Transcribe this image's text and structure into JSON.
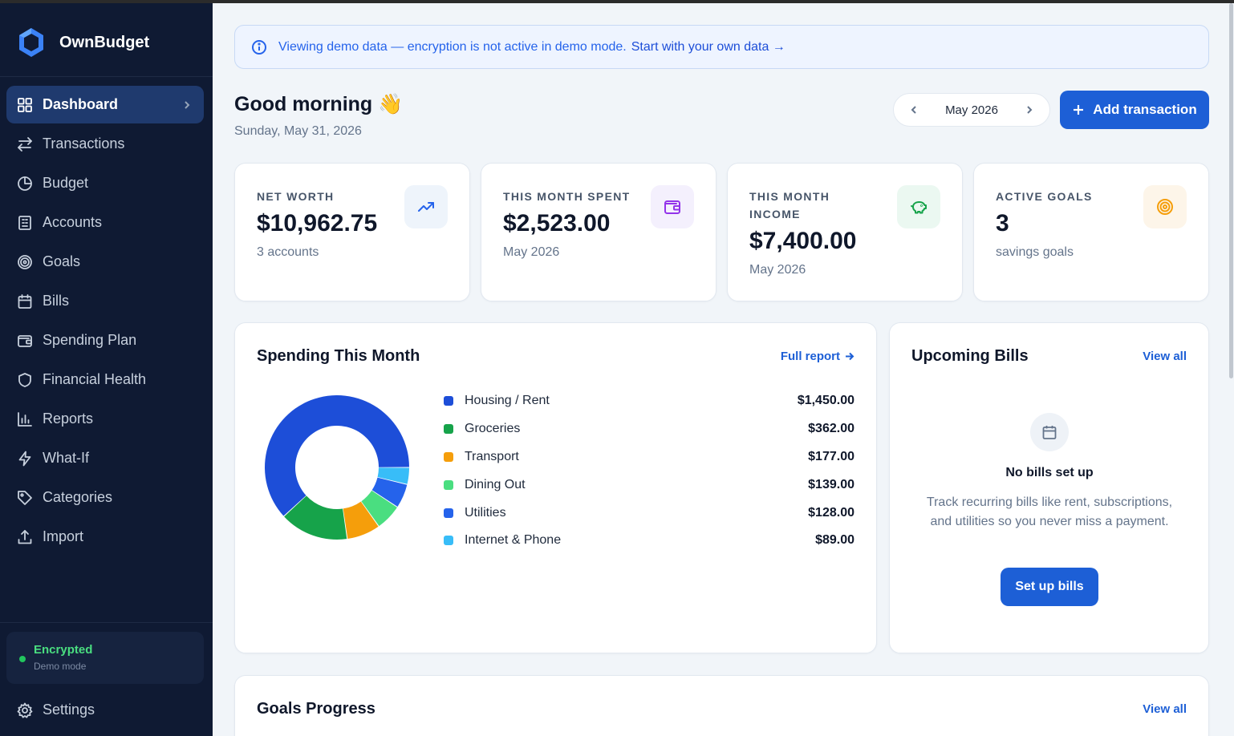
{
  "app": {
    "name": "OwnBudget"
  },
  "sidebar": {
    "items": [
      {
        "label": "Dashboard",
        "icon": "dashboard-icon"
      },
      {
        "label": "Transactions",
        "icon": "transactions-icon"
      },
      {
        "label": "Budget",
        "icon": "budget-icon"
      },
      {
        "label": "Accounts",
        "icon": "accounts-icon"
      },
      {
        "label": "Goals",
        "icon": "goals-icon"
      },
      {
        "label": "Bills",
        "icon": "bills-icon"
      },
      {
        "label": "Spending Plan",
        "icon": "wallet-icon"
      },
      {
        "label": "Financial Health",
        "icon": "shield-icon"
      },
      {
        "label": "Reports",
        "icon": "reports-icon"
      },
      {
        "label": "What-If",
        "icon": "bolt-icon"
      },
      {
        "label": "Categories",
        "icon": "tag-icon"
      },
      {
        "label": "Import",
        "icon": "upload-icon"
      }
    ],
    "status": {
      "title": "Encrypted",
      "subtitle": "Demo mode"
    },
    "settings_label": "Settings"
  },
  "banner": {
    "text": "Viewing demo data — encryption is not active in demo mode.",
    "link": "Start with your own data →"
  },
  "header": {
    "greeting": "Good morning 👋",
    "date": "Sunday, May 31, 2026",
    "month": "May 2026",
    "add_button": "Add transaction"
  },
  "stats": [
    {
      "label": "NET WORTH",
      "value": "$10,962.75",
      "sub": "3 accounts",
      "icon": "trending-up-icon",
      "icon_bg": "#eef4fb",
      "icon_color": "#2563eb"
    },
    {
      "label": "THIS MONTH SPENT",
      "value": "$2,523.00",
      "sub": "May 2026",
      "icon": "wallet-icon",
      "icon_bg": "#f4f0fd",
      "icon_color": "#9333ea"
    },
    {
      "label": "THIS MONTH INCOME",
      "value": "$7,400.00",
      "sub": "May 2026",
      "icon": "piggy-bank-icon",
      "icon_bg": "#ebf8f1",
      "icon_color": "#16a34a"
    },
    {
      "label": "ACTIVE GOALS",
      "value": "3",
      "sub": "savings goals",
      "icon": "target-icon",
      "icon_bg": "#fdf5e9",
      "icon_color": "#f59e0b"
    }
  ],
  "spending": {
    "title": "Spending This Month",
    "link": "Full report",
    "categories": [
      {
        "name": "Housing / Rent",
        "amount": "$1,450.00",
        "value": 1450,
        "color": "#1d4ed8"
      },
      {
        "name": "Groceries",
        "amount": "$362.00",
        "value": 362,
        "color": "#16a34a"
      },
      {
        "name": "Transport",
        "amount": "$177.00",
        "value": 177,
        "color": "#f59e0b"
      },
      {
        "name": "Dining Out",
        "amount": "$139.00",
        "value": 139,
        "color": "#4ade80"
      },
      {
        "name": "Utilities",
        "amount": "$128.00",
        "value": 128,
        "color": "#2563eb"
      },
      {
        "name": "Internet & Phone",
        "amount": "$89.00",
        "value": 89,
        "color": "#38bdf8"
      }
    ]
  },
  "bills": {
    "title": "Upcoming Bills",
    "link": "View all",
    "empty_title": "No bills set up",
    "empty_desc": "Track recurring bills like rent, subscriptions, and utilities so you never miss a payment.",
    "button": "Set up bills"
  },
  "goals": {
    "title": "Goals Progress",
    "link": "View all"
  }
}
